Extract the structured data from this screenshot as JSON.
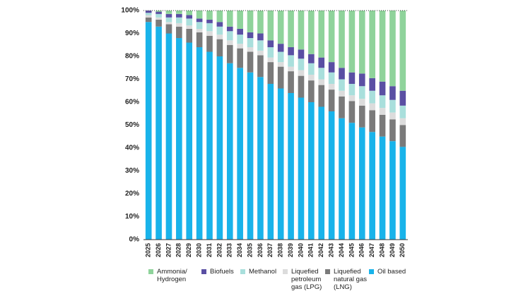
{
  "chart_data": {
    "type": "stacked-bar",
    "categories": [
      "2025",
      "2026",
      "2027",
      "2028",
      "2029",
      "2030",
      "2031",
      "2032",
      "2033",
      "2034",
      "2035",
      "2036",
      "2037",
      "2038",
      "2039",
      "2040",
      "2041",
      "2042",
      "2043",
      "2044",
      "2045",
      "2046",
      "2047",
      "2048",
      "2049",
      "2050"
    ],
    "series": [
      {
        "name": "Ammonia/ Hydrogen",
        "color": "#8fd39b",
        "values": [
          0,
          0.5,
          1.5,
          1.5,
          2,
          3.5,
          4,
          5,
          7,
          8,
          9.5,
          10,
          13,
          14.5,
          16,
          17,
          19,
          20.5,
          22.5,
          25,
          27,
          27.5,
          29.5,
          31,
          33,
          35
        ]
      },
      {
        "name": "Biofuels",
        "color": "#5a4fa3",
        "values": [
          1,
          1,
          1.5,
          1.5,
          1.5,
          1.5,
          1.5,
          2,
          2,
          2.5,
          2.5,
          3,
          3,
          3.5,
          3.5,
          4,
          4,
          4.5,
          4.5,
          5,
          5,
          5.5,
          5.5,
          6,
          6,
          6.5
        ]
      },
      {
        "name": "Methanol",
        "color": "#a9dfdc",
        "values": [
          1,
          1.5,
          2,
          2.5,
          3,
          3,
          3.5,
          3.5,
          4,
          4,
          4,
          4.5,
          4.5,
          4.5,
          5,
          5,
          5,
          5,
          5,
          5,
          5,
          5.5,
          5.5,
          5.5,
          5.5,
          5.5
        ]
      },
      {
        "name": "Liquefied petroleum gas (LPG)",
        "color": "#dcdcdc",
        "values": [
          1,
          1,
          1,
          1.5,
          1.5,
          1.5,
          2,
          2,
          2,
          2,
          2,
          2,
          2,
          2,
          2,
          2.5,
          2.5,
          2.5,
          2.5,
          2.5,
          2.5,
          3,
          3,
          3,
          3,
          3
        ]
      },
      {
        "name": "Liquefied natural gas (LNG)",
        "color": "#7a7a7a",
        "values": [
          2,
          3,
          4,
          5,
          6,
          6.5,
          7,
          7.5,
          8,
          8.5,
          9,
          9.5,
          9.5,
          9.5,
          9.5,
          9.5,
          9.5,
          9.5,
          9.5,
          9.5,
          9.5,
          9.5,
          9.5,
          9.5,
          9.5,
          9.5
        ]
      },
      {
        "name": "Oil based",
        "color": "#19b3ea",
        "values": [
          95,
          93,
          90,
          88,
          86,
          84,
          82,
          80,
          77,
          75,
          73,
          71,
          68,
          66,
          64,
          62,
          60,
          58,
          56,
          53,
          51,
          49,
          47,
          45,
          43,
          40.5
        ]
      }
    ],
    "ylim": [
      0,
      100
    ],
    "yticks": [
      {
        "value": 0,
        "label": "0%"
      },
      {
        "value": 10,
        "label": "10%"
      },
      {
        "value": 20,
        "label": "20%"
      },
      {
        "value": 30,
        "label": "30%"
      },
      {
        "value": 40,
        "label": "40%"
      },
      {
        "value": 50,
        "label": "50%"
      },
      {
        "value": 60,
        "label": "60%"
      },
      {
        "value": 70,
        "label": "70%"
      },
      {
        "value": 80,
        "label": "80%"
      },
      {
        "value": 90,
        "label": "90%"
      },
      {
        "value": 100,
        "label": "100%"
      }
    ],
    "grid": false
  }
}
